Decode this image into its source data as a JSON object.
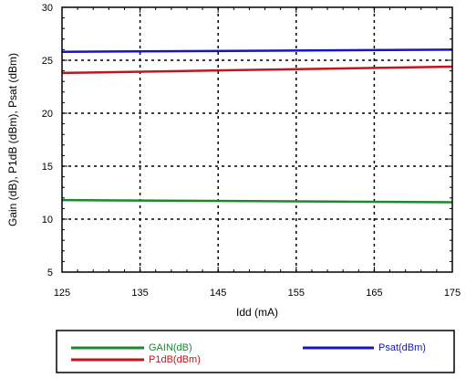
{
  "chart_data": {
    "type": "line",
    "xlabel": "Idd (mA)",
    "ylabel": "Gain (dB), P1dB (dBm), Psat (dBm)",
    "xlim": [
      125,
      175
    ],
    "ylim": [
      5,
      30
    ],
    "xticks": [
      125,
      135,
      145,
      155,
      165,
      175
    ],
    "yticks": [
      5,
      10,
      15,
      20,
      25,
      30
    ],
    "grid": true,
    "legend_position": "bottom",
    "x": [
      125,
      175
    ],
    "series": [
      {
        "name": "GAIN(dB)",
        "color": "#1a8a2a",
        "values": [
          11.8,
          11.6
        ]
      },
      {
        "name": "P1dB(dBm)",
        "color": "#c0161c",
        "values": [
          23.8,
          24.4
        ]
      },
      {
        "name": "Psat(dBm)",
        "color": "#1414c8",
        "values": [
          25.8,
          26.0
        ]
      }
    ]
  }
}
